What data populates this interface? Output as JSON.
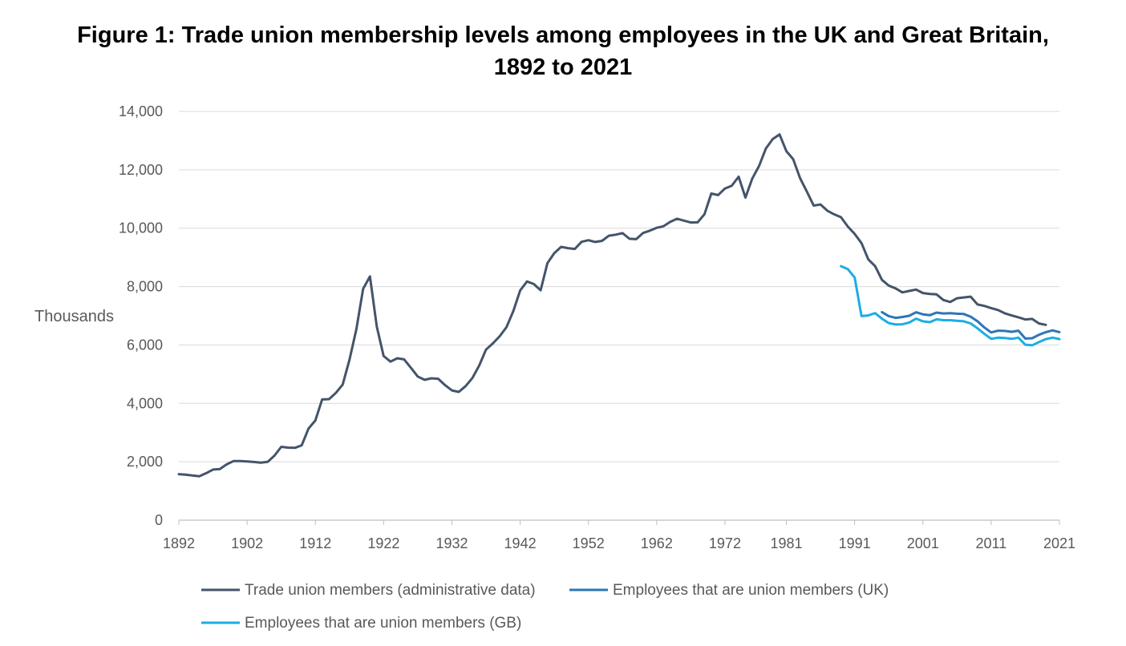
{
  "title": {
    "line1": "Figure 1: Trade union membership levels among employees in the UK and Great Britain,",
    "line2": "1892 to 2021"
  },
  "chart_data": {
    "type": "line",
    "title": "Figure 1: Trade union membership levels among employees in the UK and Great Britain, 1892 to 2021",
    "xlabel": "",
    "ylabel": "Thousands",
    "xlim": [
      1892,
      2021
    ],
    "ylim": [
      0,
      14000
    ],
    "x_ticks": [
      "1892",
      "1902",
      "1912",
      "1922",
      "1932",
      "1942",
      "1952",
      "1962",
      "1972",
      "1981",
      "1991",
      "2001",
      "2011",
      "2021"
    ],
    "y_ticks": [
      "0",
      "2,000",
      "4,000",
      "6,000",
      "8,000",
      "10,000",
      "12,000",
      "14,000"
    ],
    "grid": "horizontal",
    "legend_position": "bottom",
    "series": [
      {
        "name": "Trade union members (administrative data)",
        "color": "#44546a",
        "x": [
          1892,
          1893,
          1894,
          1895,
          1896,
          1897,
          1898,
          1899,
          1900,
          1901,
          1902,
          1903,
          1904,
          1905,
          1906,
          1907,
          1908,
          1909,
          1910,
          1911,
          1912,
          1913,
          1914,
          1915,
          1916,
          1917,
          1918,
          1919,
          1920,
          1921,
          1922,
          1923,
          1924,
          1925,
          1926,
          1927,
          1928,
          1929,
          1930,
          1931,
          1932,
          1933,
          1934,
          1935,
          1936,
          1937,
          1938,
          1939,
          1940,
          1941,
          1942,
          1943,
          1944,
          1945,
          1946,
          1947,
          1948,
          1949,
          1950,
          1951,
          1952,
          1953,
          1954,
          1955,
          1956,
          1957,
          1958,
          1959,
          1960,
          1961,
          1962,
          1963,
          1964,
          1965,
          1966,
          1967,
          1968,
          1969,
          1970,
          1971,
          1972,
          1973,
          1974,
          1975,
          1976,
          1977,
          1978,
          1979,
          1980,
          1981,
          1982,
          1983,
          1984,
          1985,
          1986,
          1987,
          1988,
          1989,
          1990,
          1991,
          1992,
          1993,
          1994,
          1995,
          1996,
          1997,
          1998,
          1999,
          2000,
          2001,
          2002,
          2003,
          2004,
          2005,
          2006,
          2007,
          2008,
          2009,
          2010,
          2011,
          2012,
          2013,
          2014,
          2015,
          2016,
          2017,
          2018,
          2019
        ],
        "values": [
          1576,
          1559,
          1530,
          1504,
          1608,
          1731,
          1752,
          1911,
          2022,
          2025,
          2013,
          1994,
          1967,
          1997,
          2210,
          2513,
          2485,
          2477,
          2565,
          3139,
          3416,
          4135,
          4145,
          4359,
          4644,
          5499,
          6533,
          7926,
          8348,
          6633,
          5625,
          5429,
          5544,
          5506,
          5219,
          4919,
          4806,
          4858,
          4842,
          4624,
          4444,
          4392,
          4590,
          4867,
          5295,
          5842,
          6053,
          6298,
          6613,
          7165,
          7867,
          8174,
          8087,
          7875,
          8803,
          9145,
          9362,
          9318,
          9289,
          9535,
          9588,
          9527,
          9566,
          9741,
          9778,
          9829,
          9639,
          9623,
          9835,
          9916,
          10014,
          10067,
          10218,
          10325,
          10259,
          10194,
          10200,
          10479,
          11187,
          11135,
          11359,
          11456,
          11764,
          11048,
          11700,
          12133,
          12731,
          13054,
          13212,
          12639,
          12363,
          11713,
          11253,
          10774,
          10812,
          10598,
          10475,
          10376,
          10058,
          9803,
          9489,
          8929,
          8700,
          8231,
          8031,
          7938,
          7801,
          7852,
          7898,
          7779,
          7750,
          7732,
          7540,
          7473,
          7602,
          7628,
          7656,
          7388,
          7339,
          7264,
          7199,
          7086,
          7012,
          6948,
          6875,
          6893,
          6737,
          6689
        ]
      },
      {
        "name": "Employees that are union members (UK)",
        "color": "#2e75b6",
        "x": [
          1995,
          1996,
          1997,
          1998,
          1999,
          2000,
          2001,
          2002,
          2003,
          2004,
          2005,
          2006,
          2007,
          2008,
          2009,
          2010,
          2011,
          2012,
          2013,
          2014,
          2015,
          2016,
          2017,
          2018,
          2019,
          2020,
          2021
        ],
        "values": [
          7125,
          6990,
          6930,
          6960,
          7000,
          7120,
          7050,
          7020,
          7110,
          7080,
          7090,
          7070,
          7060,
          6970,
          6810,
          6600,
          6430,
          6490,
          6480,
          6450,
          6490,
          6220,
          6230,
          6350,
          6440,
          6500,
          6440
        ]
      },
      {
        "name": "Employees that are union members (GB)",
        "color": "#1cade4",
        "x": [
          1989,
          1990,
          1991,
          1992,
          1993,
          1994,
          1995,
          1996,
          1997,
          1998,
          1999,
          2000,
          2001,
          2002,
          2003,
          2004,
          2005,
          2006,
          2007,
          2008,
          2009,
          2010,
          2011,
          2012,
          2013,
          2014,
          2015,
          2016,
          2017,
          2018,
          2019,
          2020,
          2021
        ],
        "values": [
          8700,
          8600,
          8310,
          6990,
          7010,
          7090,
          6900,
          6750,
          6700,
          6710,
          6770,
          6900,
          6810,
          6780,
          6880,
          6850,
          6850,
          6830,
          6810,
          6740,
          6570,
          6380,
          6210,
          6250,
          6240,
          6210,
          6250,
          6010,
          5990,
          6100,
          6200,
          6250,
          6200
        ]
      }
    ]
  }
}
